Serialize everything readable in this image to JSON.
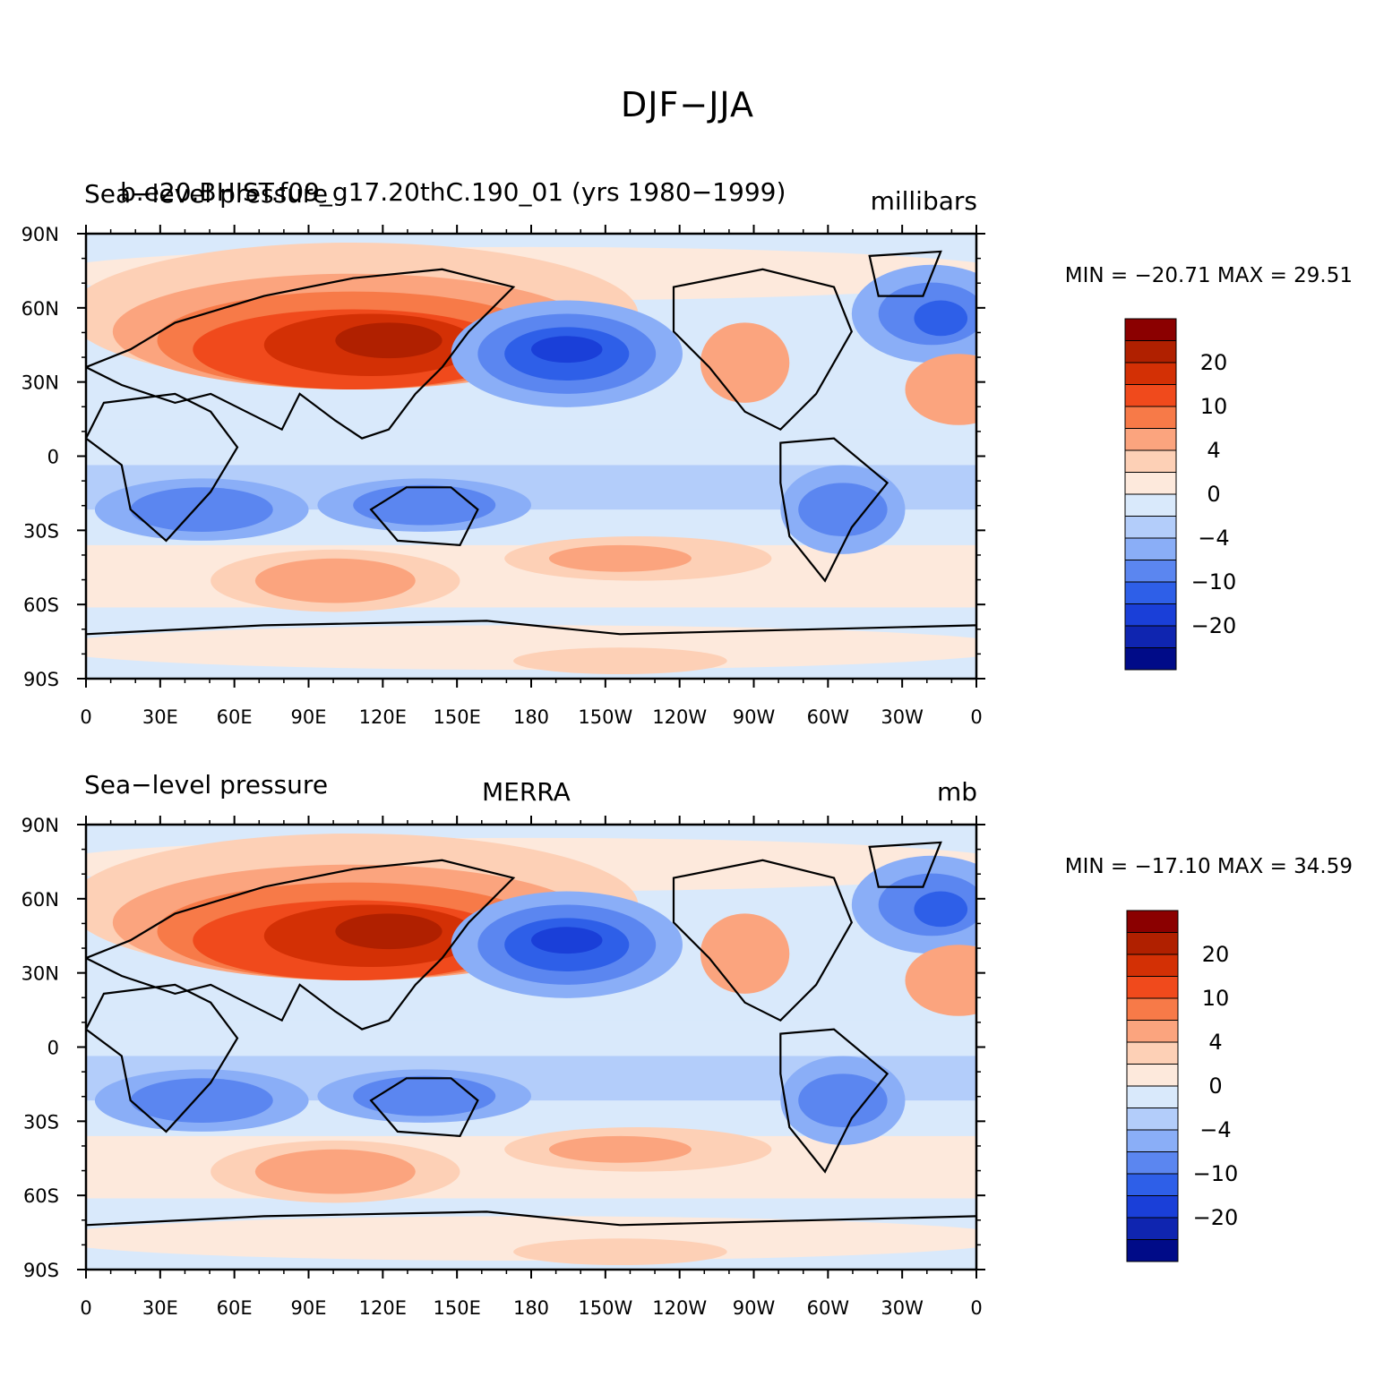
{
  "figure_title": "DJF−JJA",
  "panels": [
    {
      "left_title": "Sea−level pressure",
      "center_title": "b.e20.BHIST.f09_g17.20thC.190_01 (yrs 1980−1999)",
      "right_title": "millibars",
      "min_max": "MIN = −20.71  MAX =   29.51",
      "field": {
        "min": -20.71,
        "max": 29.51
      }
    },
    {
      "left_title": "Sea−level pressure",
      "center_title": "MERRA",
      "right_title": "mb",
      "min_max": "MIN = −17.10  MAX =   34.59",
      "field": {
        "min": -17.1,
        "max": 34.59
      }
    }
  ],
  "lat_labels": [
    "90N",
    "60N",
    "30N",
    "0",
    "30S",
    "60S",
    "90S"
  ],
  "lon_labels": [
    "0",
    "30E",
    "60E",
    "90E",
    "120E",
    "150E",
    "180",
    "150W",
    "120W",
    "90W",
    "60W",
    "30W",
    "0"
  ],
  "colorbar": {
    "labels": [
      "20",
      "10",
      "4",
      "0",
      "−4",
      "−10",
      "−20"
    ],
    "colors_top_to_bottom": [
      "#8b0000",
      "#b02000",
      "#d33005",
      "#f04a1c",
      "#f77a48",
      "#fba47e",
      "#fdd0b6",
      "#fde9dc",
      "#d9e9fb",
      "#b3cdfa",
      "#8aaef7",
      "#5b86f0",
      "#2e5fe8",
      "#1a3fd8",
      "#0f25b0",
      "#000b88"
    ]
  },
  "continents_ring": {
    "name": "placeholder"
  }
}
